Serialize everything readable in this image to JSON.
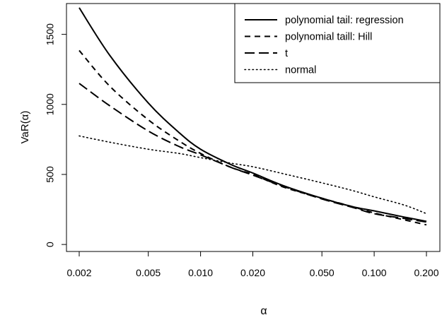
{
  "chart_data": {
    "type": "line",
    "title": "",
    "xlabel": "α",
    "ylabel": "VaR(α)",
    "x_scale": "log",
    "xlim": [
      0.002,
      0.2
    ],
    "ylim": [
      -50,
      1720
    ],
    "x_ticks": [
      0.002,
      0.005,
      0.01,
      0.02,
      0.05,
      0.1,
      0.2
    ],
    "x_tick_labels": [
      "0.002",
      "0.005",
      "0.010",
      "0.020",
      "0.050",
      "0.100",
      "0.200"
    ],
    "y_ticks": [
      0,
      500,
      1000,
      1500
    ],
    "y_tick_labels": [
      "0",
      "500",
      "1000",
      "1500"
    ],
    "grid": false,
    "legend_position": "top-right",
    "x": [
      0.002,
      0.003,
      0.005,
      0.0075,
      0.01,
      0.015,
      0.02,
      0.03,
      0.05,
      0.075,
      0.1,
      0.15,
      0.2
    ],
    "series": [
      {
        "name": "polynomial tail: regression",
        "style": "solid",
        "values": [
          1690,
          1350,
          1010,
          800,
          680,
          570,
          510,
          420,
          330,
          270,
          240,
          195,
          165
        ]
      },
      {
        "name": "polynomial taill: Hill",
        "style": "dashed",
        "values": [
          1385,
          1130,
          890,
          740,
          650,
          550,
          500,
          410,
          330,
          270,
          225,
          175,
          140
        ]
      },
      {
        "name": "t",
        "style": "longdash",
        "values": [
          1150,
          990,
          810,
          700,
          640,
          550,
          495,
          415,
          325,
          265,
          220,
          185,
          160
        ]
      },
      {
        "name": "normal",
        "style": "dotted",
        "values": [
          775,
          730,
          680,
          650,
          620,
          580,
          555,
          505,
          440,
          385,
          340,
          280,
          220
        ]
      }
    ]
  }
}
